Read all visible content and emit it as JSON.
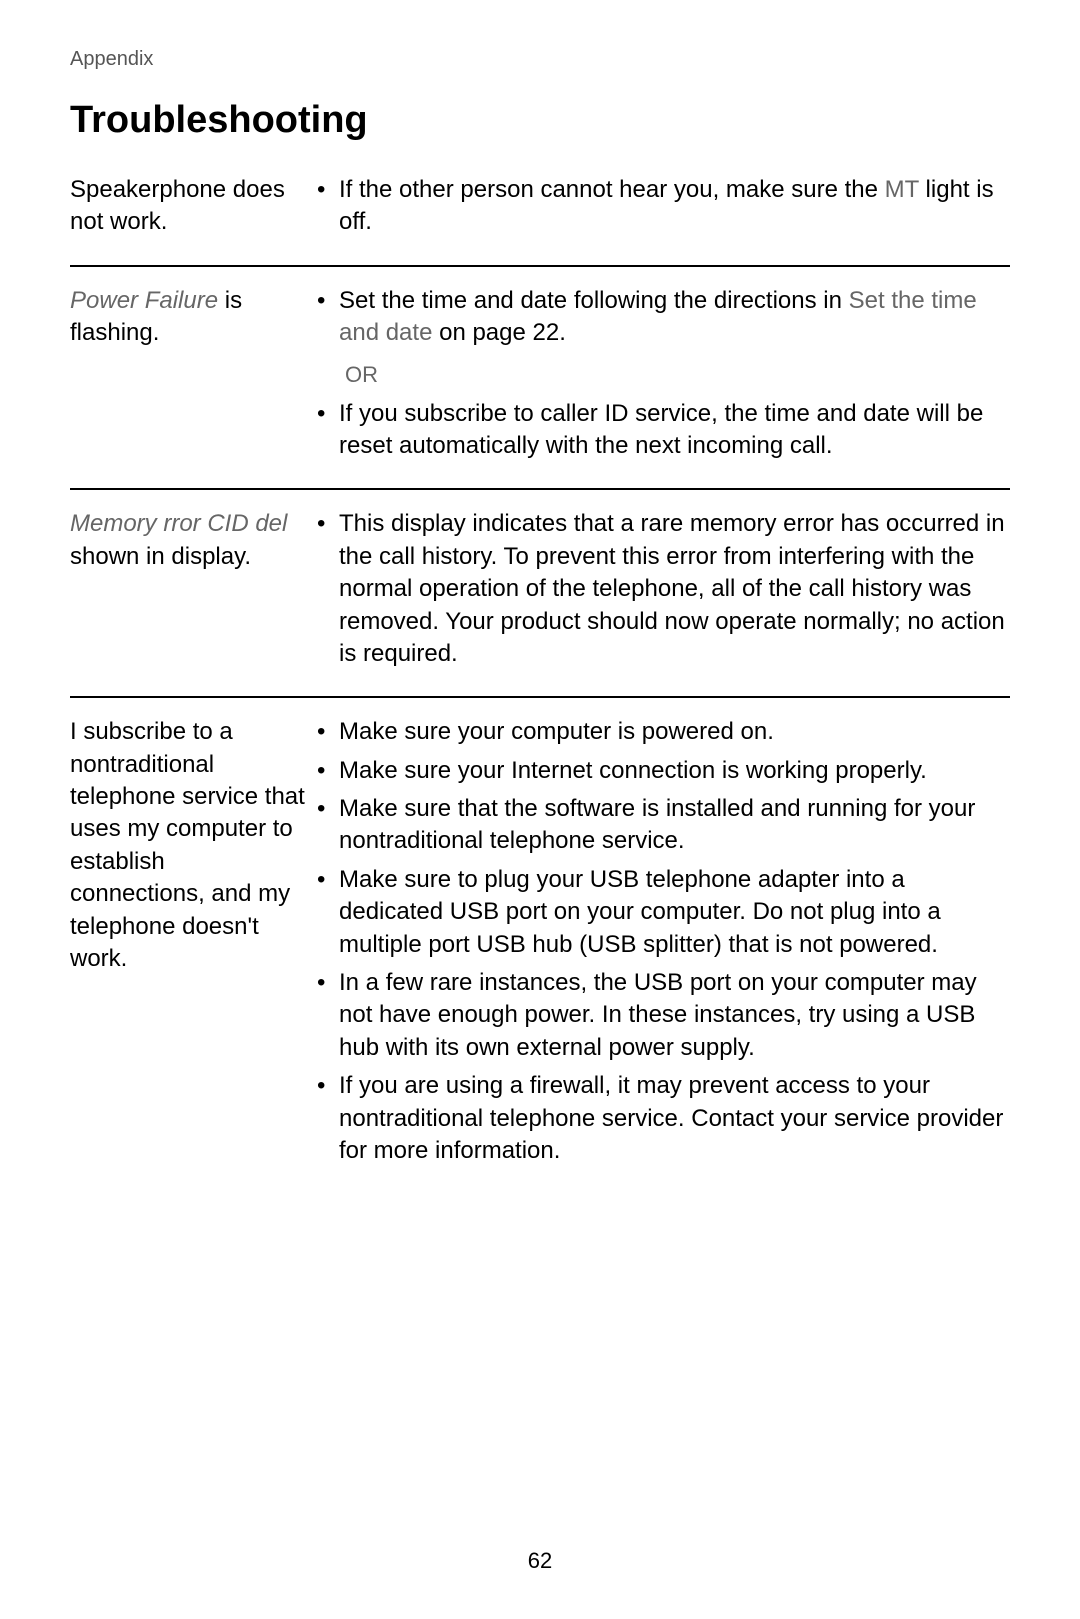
{
  "header": "Appendix",
  "title": "Troubleshooting",
  "pageNumber": "62",
  "sections": [
    {
      "problem_pre": "Speakerphone does not work.",
      "solutions": [
        {
          "pre": "If the other person cannot hear you, make sure the ",
          "grey": "MT",
          "post": " light is off."
        }
      ]
    },
    {
      "problem_grey": "Power Failure",
      "problem_post": " is flashing.",
      "solutions": [
        {
          "pre": "Set the time and date following the directions in ",
          "grey": "Set the time and date",
          "post": " on page 22."
        }
      ],
      "or": "OR",
      "solutions2": [
        {
          "text": "If you subscribe to caller ID service, the time and date will be reset automatically with the next incoming call."
        }
      ]
    },
    {
      "problem_grey": "Memory rror CID del",
      "problem_post": " shown in display.",
      "solutions": [
        {
          "text": "This display indicates that a rare memory error has occurred in the call history. To prevent this error from interfering with the normal operation of the telephone, all of the call history was removed. Your product should now operate normally; no action is required."
        }
      ]
    },
    {
      "problem_pre": "I subscribe to a nontraditional telephone service that uses my computer to establish connections, and my telephone doesn't work.",
      "solutions": [
        {
          "text": "Make sure your computer is powered on."
        },
        {
          "text": "Make sure your Internet connection is working properly."
        },
        {
          "text": "Make sure that the software is installed and running for your nontraditional telephone service."
        },
        {
          "text": "Make sure to plug your USB telephone adapter into a dedicated USB port on your computer. Do not plug into a multiple port USB hub (USB splitter) that is not powered."
        },
        {
          "text": "In a few rare instances, the USB port on your computer may not have enough power. In these instances, try using a USB hub with its own external power supply."
        },
        {
          "text": "If you are using a firewall, it may prevent access to your nontraditional telephone service. Contact your service provider for more information."
        }
      ]
    }
  ]
}
